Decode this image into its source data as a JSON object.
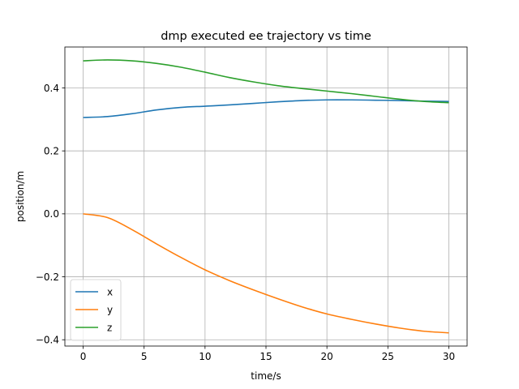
{
  "chart_data": {
    "type": "line",
    "title": "dmp executed ee trajectory vs time",
    "xlabel": "time/s",
    "ylabel": "position/m",
    "xlim": [
      -1.5,
      31.5
    ],
    "ylim": [
      -0.42,
      0.53
    ],
    "xticks": [
      0,
      5,
      10,
      15,
      20,
      25,
      30
    ],
    "xtick_labels": [
      "0",
      "5",
      "10",
      "15",
      "20",
      "25",
      "30"
    ],
    "yticks": [
      -0.4,
      -0.2,
      0.0,
      0.2,
      0.4
    ],
    "ytick_labels": [
      "−0.4",
      "−0.2",
      "0.0",
      "0.2",
      "0.4"
    ],
    "grid": true,
    "legend_position": "lower-left",
    "x": [
      0,
      2,
      4,
      6,
      8,
      10,
      12,
      14,
      16,
      18,
      20,
      22,
      24,
      26,
      28,
      30
    ],
    "series": [
      {
        "name": "x",
        "color": "#1f77b4",
        "values": [
          0.306,
          0.309,
          0.318,
          0.33,
          0.338,
          0.342,
          0.346,
          0.351,
          0.356,
          0.36,
          0.362,
          0.362,
          0.361,
          0.36,
          0.358,
          0.357
        ]
      },
      {
        "name": "y",
        "color": "#ff7f0e",
        "values": [
          0.0,
          -0.012,
          -0.05,
          -0.095,
          -0.138,
          -0.178,
          -0.212,
          -0.242,
          -0.27,
          -0.296,
          -0.318,
          -0.335,
          -0.35,
          -0.363,
          -0.373,
          -0.378
        ]
      },
      {
        "name": "z",
        "color": "#2ca02c",
        "values": [
          0.486,
          0.489,
          0.486,
          0.478,
          0.466,
          0.45,
          0.433,
          0.419,
          0.407,
          0.398,
          0.39,
          0.382,
          0.373,
          0.364,
          0.357,
          0.353
        ]
      }
    ]
  }
}
